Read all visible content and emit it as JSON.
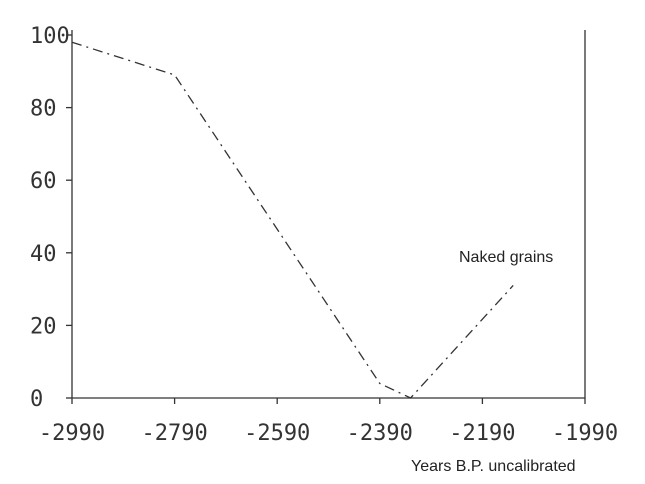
{
  "chart_data": {
    "type": "line",
    "title": "",
    "xlabel": "Years B.P. uncalibrated",
    "ylabel": "",
    "xlim": [
      -2990,
      -1990
    ],
    "ylim": [
      0,
      100
    ],
    "x_ticks": [
      "-2990",
      "-2790",
      "-2590",
      "-2390",
      "-2190",
      "-1990"
    ],
    "y_ticks": [
      "100",
      "80",
      "60",
      "40",
      "20",
      "0"
    ],
    "grid": false,
    "series": [
      {
        "name": "Naked grains",
        "x": [
          -2990,
          -2790,
          -2390,
          -2330,
          -2130
        ],
        "y": [
          98,
          89,
          4,
          0,
          31
        ]
      }
    ]
  }
}
